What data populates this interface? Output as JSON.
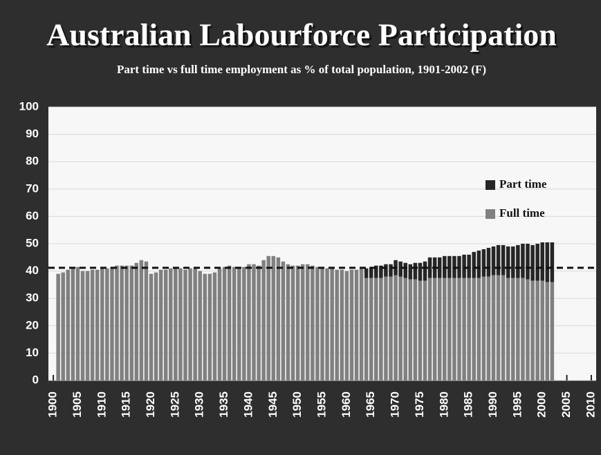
{
  "chart_data": {
    "type": "stacked_bar",
    "title": "Australian Labourforce Participation",
    "subtitle": "Part time vs full time employment as % of total population, 1901-2002 (F)",
    "x": [
      1901,
      1902,
      1903,
      1904,
      1905,
      1906,
      1907,
      1908,
      1909,
      1910,
      1911,
      1912,
      1913,
      1914,
      1915,
      1916,
      1917,
      1918,
      1919,
      1920,
      1921,
      1922,
      1923,
      1924,
      1925,
      1926,
      1927,
      1928,
      1929,
      1930,
      1931,
      1932,
      1933,
      1934,
      1935,
      1936,
      1937,
      1938,
      1939,
      1940,
      1941,
      1942,
      1943,
      1944,
      1945,
      1946,
      1947,
      1948,
      1949,
      1950,
      1951,
      1952,
      1953,
      1954,
      1955,
      1956,
      1957,
      1958,
      1959,
      1960,
      1961,
      1962,
      1963,
      1964,
      1965,
      1966,
      1967,
      1968,
      1969,
      1970,
      1971,
      1972,
      1973,
      1974,
      1975,
      1976,
      1977,
      1978,
      1979,
      1980,
      1981,
      1982,
      1983,
      1984,
      1985,
      1986,
      1987,
      1988,
      1989,
      1990,
      1991,
      1992,
      1993,
      1994,
      1995,
      1996,
      1997,
      1998,
      1999,
      2000,
      2001,
      2002
    ],
    "series": [
      {
        "name": "Full time",
        "color": "#808080",
        "values": [
          39,
          39.5,
          40.5,
          41,
          41.5,
          40,
          40,
          40.5,
          40.5,
          41,
          41,
          41.5,
          42,
          42,
          42,
          42,
          43,
          44,
          43.5,
          39,
          39.5,
          40.5,
          40.5,
          41,
          41,
          41,
          40.5,
          41,
          41,
          40,
          39,
          39,
          39.5,
          41,
          41.5,
          42,
          41.5,
          41,
          41.5,
          42.5,
          42.5,
          42,
          44,
          45.5,
          45.5,
          45,
          43.5,
          42.5,
          42,
          42,
          42.5,
          42.5,
          42,
          41.5,
          41.5,
          41,
          41,
          40.5,
          40.5,
          40,
          40.5,
          40.5,
          41,
          37.5,
          37.5,
          37.5,
          37.5,
          38,
          38,
          38.5,
          38,
          37.5,
          37,
          37,
          36.5,
          36.5,
          37.5,
          37.5,
          37.5,
          37.5,
          37.5,
          37.5,
          37.5,
          37.5,
          37.5,
          37.5,
          37.5,
          38,
          38,
          38.5,
          38.5,
          38.5,
          37.5,
          37.5,
          37.5,
          37.5,
          37,
          36.5,
          36.5,
          36.5,
          36,
          36
        ]
      },
      {
        "name": "Part time",
        "color": "#262626",
        "values": [
          null,
          null,
          null,
          null,
          null,
          null,
          null,
          null,
          null,
          null,
          null,
          null,
          null,
          null,
          null,
          null,
          null,
          null,
          null,
          null,
          null,
          null,
          null,
          null,
          null,
          null,
          null,
          null,
          null,
          null,
          null,
          null,
          null,
          null,
          null,
          null,
          null,
          null,
          null,
          null,
          null,
          null,
          null,
          null,
          null,
          null,
          null,
          null,
          null,
          null,
          null,
          null,
          null,
          null,
          null,
          null,
          null,
          null,
          null,
          null,
          null,
          null,
          null,
          3.5,
          4,
          4.5,
          4.5,
          4.5,
          4.5,
          5.5,
          5.5,
          5.5,
          5.5,
          6,
          6.5,
          7,
          7.5,
          7.5,
          7.5,
          8,
          8,
          8,
          8,
          8.5,
          8.5,
          9.5,
          10,
          10,
          10.5,
          10.5,
          11,
          11,
          11.5,
          11.5,
          12,
          12.5,
          13,
          13,
          13.5,
          14,
          14.5,
          14.5
        ]
      }
    ],
    "xlim": [
      1899,
      2011
    ],
    "xticks": [
      1900,
      1905,
      1910,
      1915,
      1920,
      1925,
      1930,
      1935,
      1940,
      1945,
      1950,
      1955,
      1960,
      1965,
      1970,
      1975,
      1980,
      1985,
      1990,
      1995,
      2000,
      2005,
      2010
    ],
    "ylim": [
      0,
      100
    ],
    "yticks": [
      0,
      10,
      20,
      30,
      40,
      50,
      60,
      70,
      80,
      90,
      100
    ],
    "grid": true,
    "reference_line": 41.2,
    "legend": "upper right"
  }
}
